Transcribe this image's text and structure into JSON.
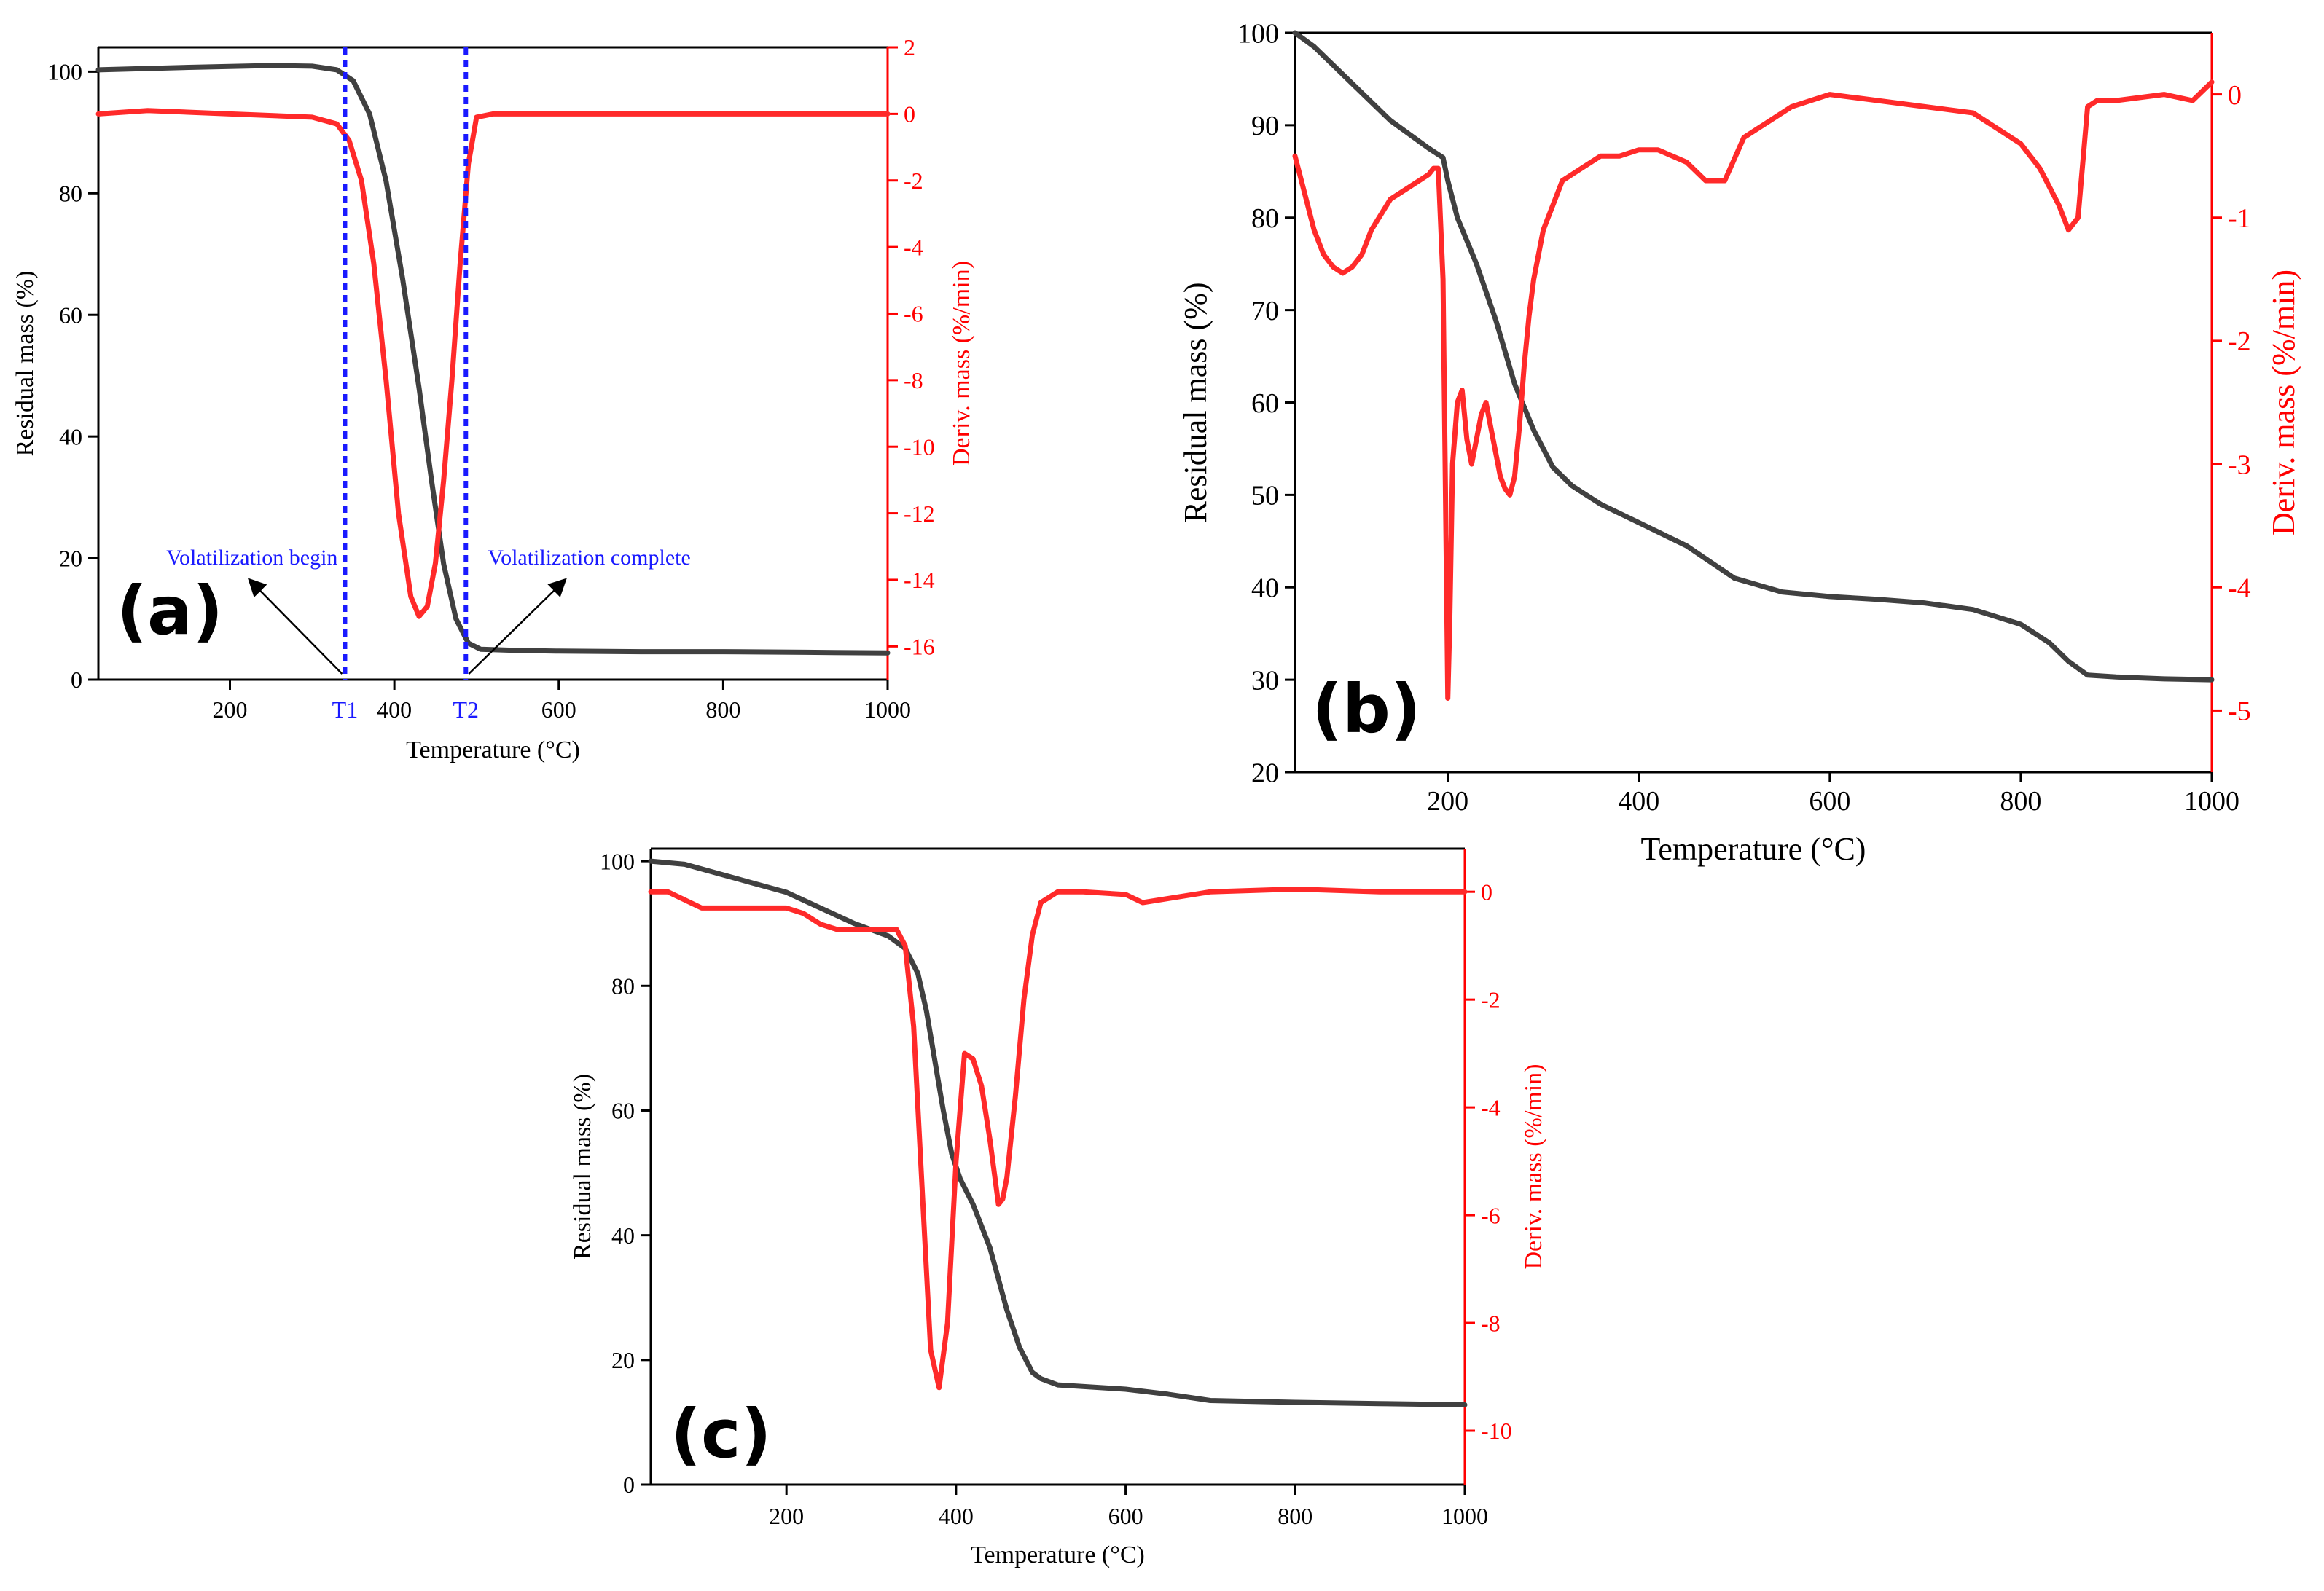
{
  "figure": {
    "colors": {
      "mass": "#404040",
      "deriv": "#ff2a2a",
      "axis_left": "#000000",
      "axis_right": "#ff0000",
      "marker": "#1a1aff"
    }
  },
  "chart_data": [
    {
      "type": "line",
      "panel_label": "(a)",
      "xlabel": "Temperature (°C)",
      "ylabel": "Residual mass (%)",
      "y2label": "Deriv. mass (%/min)",
      "xlim": [
        40,
        1000
      ],
      "ylim": [
        0,
        104
      ],
      "y2lim": [
        -17,
        2
      ],
      "xticks": [
        200,
        400,
        600,
        800,
        1000
      ],
      "yticks": [
        0,
        20,
        40,
        60,
        80,
        100
      ],
      "y2ticks": [
        -16,
        -14,
        -12,
        -10,
        -8,
        -6,
        -4,
        -2,
        0,
        2
      ],
      "series": [
        {
          "name": "Residual mass",
          "axis": "left",
          "x": [
            40,
            150,
            250,
            300,
            330,
            350,
            370,
            390,
            410,
            430,
            445,
            460,
            475,
            490,
            505,
            550,
            600,
            700,
            800,
            900,
            1000
          ],
          "values": [
            100.3,
            100.7,
            101.0,
            100.9,
            100.3,
            98.5,
            93.0,
            82.0,
            66.0,
            48.0,
            33.0,
            19.0,
            10.0,
            6.0,
            5.0,
            4.8,
            4.7,
            4.6,
            4.6,
            4.5,
            4.4
          ]
        },
        {
          "name": "Deriv. mass",
          "axis": "right",
          "x": [
            40,
            100,
            200,
            300,
            330,
            345,
            360,
            375,
            390,
            405,
            420,
            430,
            440,
            450,
            460,
            470,
            480,
            490,
            500,
            520,
            600,
            700,
            800,
            900,
            1000
          ],
          "values": [
            0.0,
            0.1,
            0.0,
            -0.1,
            -0.3,
            -0.8,
            -2.0,
            -4.5,
            -8.0,
            -12.0,
            -14.5,
            -15.1,
            -14.8,
            -13.5,
            -11.0,
            -8.0,
            -4.5,
            -1.5,
            -0.1,
            0.0,
            0.0,
            0.0,
            0.0,
            0.0,
            0.0
          ]
        }
      ],
      "markers": [
        {
          "label": "T1",
          "x": 340
        },
        {
          "label": "T2",
          "x": 487
        }
      ],
      "annotations": [
        {
          "text": "Volatilization begin",
          "points_to": "T1"
        },
        {
          "text": "Volatilization complete",
          "points_to": "T2"
        }
      ]
    },
    {
      "type": "line",
      "panel_label": "(b)",
      "xlabel": "Temperature (°C)",
      "ylabel": "Residual mass (%)",
      "y2label": "Deriv. mass (%/min)",
      "xlim": [
        40,
        1000
      ],
      "ylim": [
        20,
        100
      ],
      "y2lim": [
        -5.5,
        0.5
      ],
      "xticks": [
        200,
        400,
        600,
        800,
        1000
      ],
      "yticks": [
        20,
        30,
        40,
        50,
        60,
        70,
        80,
        90,
        100
      ],
      "y2ticks": [
        -5,
        -4,
        -3,
        -2,
        -1,
        0
      ],
      "series": [
        {
          "name": "Residual mass",
          "axis": "left",
          "x": [
            40,
            60,
            80,
            100,
            120,
            140,
            160,
            180,
            195,
            200,
            210,
            230,
            250,
            270,
            290,
            310,
            330,
            360,
            400,
            450,
            500,
            550,
            600,
            650,
            700,
            750,
            800,
            830,
            850,
            870,
            900,
            950,
            1000
          ],
          "values": [
            100,
            98.5,
            96.5,
            94.5,
            92.5,
            90.5,
            89,
            87.5,
            86.5,
            84,
            80,
            75,
            69,
            62,
            57,
            53,
            51,
            49,
            47,
            44.5,
            41,
            39.5,
            39,
            38.7,
            38.3,
            37.6,
            36,
            34,
            32,
            30.5,
            30.3,
            30.1,
            30
          ]
        },
        {
          "name": "Deriv. mass",
          "axis": "right",
          "x": [
            40,
            50,
            60,
            70,
            80,
            90,
            100,
            110,
            120,
            140,
            160,
            180,
            185,
            190,
            195,
            198,
            200,
            202,
            205,
            210,
            215,
            220,
            225,
            230,
            235,
            240,
            245,
            250,
            255,
            260,
            265,
            270,
            275,
            280,
            285,
            290,
            300,
            320,
            340,
            360,
            380,
            400,
            420,
            450,
            470,
            490,
            510,
            530,
            560,
            600,
            650,
            700,
            750,
            800,
            820,
            840,
            850,
            860,
            870,
            880,
            900,
            950,
            980,
            1000
          ],
          "values": [
            -0.5,
            -0.8,
            -1.1,
            -1.3,
            -1.4,
            -1.45,
            -1.4,
            -1.3,
            -1.1,
            -0.85,
            -0.75,
            -0.65,
            -0.6,
            -0.6,
            -1.5,
            -3.5,
            -4.9,
            -4.3,
            -3.0,
            -2.5,
            -2.4,
            -2.8,
            -3.0,
            -2.8,
            -2.6,
            -2.5,
            -2.7,
            -2.9,
            -3.1,
            -3.2,
            -3.25,
            -3.1,
            -2.7,
            -2.2,
            -1.8,
            -1.5,
            -1.1,
            -0.7,
            -0.6,
            -0.5,
            -0.5,
            -0.45,
            -0.45,
            -0.55,
            -0.7,
            -0.7,
            -0.35,
            -0.25,
            -0.1,
            0.0,
            -0.05,
            -0.1,
            -0.15,
            -0.4,
            -0.6,
            -0.9,
            -1.1,
            -1.0,
            -0.1,
            -0.05,
            -0.05,
            0.0,
            -0.05,
            0.1
          ]
        }
      ]
    },
    {
      "type": "line",
      "panel_label": "(c)",
      "xlabel": "Temperature (°C)",
      "ylabel": "Residual mass (%)",
      "y2label": "Deriv. mass (%/min)",
      "xlim": [
        40,
        1000
      ],
      "ylim": [
        0,
        102
      ],
      "y2lim": [
        -11,
        0.8
      ],
      "xticks": [
        200,
        400,
        600,
        800,
        1000
      ],
      "yticks": [
        0,
        20,
        40,
        60,
        80,
        100
      ],
      "y2ticks": [
        -10,
        -8,
        -6,
        -4,
        -2,
        0
      ],
      "series": [
        {
          "name": "Residual mass",
          "axis": "left",
          "x": [
            40,
            80,
            120,
            160,
            200,
            240,
            280,
            320,
            340,
            355,
            365,
            375,
            385,
            395,
            405,
            420,
            440,
            460,
            475,
            490,
            500,
            520,
            600,
            650,
            700,
            800,
            900,
            1000
          ],
          "values": [
            100,
            99.5,
            98,
            96.5,
            95,
            92.5,
            90,
            88,
            86,
            82,
            76,
            68,
            60,
            53,
            49,
            45,
            38,
            28,
            22,
            18,
            17,
            16,
            15.3,
            14.5,
            13.5,
            13.2,
            13,
            12.8
          ]
        },
        {
          "name": "Deriv. mass",
          "axis": "right",
          "x": [
            40,
            60,
            100,
            150,
            200,
            220,
            240,
            260,
            300,
            330,
            340,
            350,
            360,
            370,
            380,
            390,
            400,
            410,
            420,
            430,
            440,
            450,
            455,
            460,
            470,
            480,
            490,
            500,
            520,
            550,
            600,
            620,
            700,
            800,
            900,
            1000
          ],
          "values": [
            0.0,
            0.0,
            -0.3,
            -0.3,
            -0.3,
            -0.4,
            -0.6,
            -0.7,
            -0.7,
            -0.7,
            -1.0,
            -2.5,
            -5.5,
            -8.5,
            -9.2,
            -8.0,
            -5.0,
            -3.0,
            -3.1,
            -3.6,
            -4.6,
            -5.8,
            -5.7,
            -5.3,
            -3.8,
            -2.0,
            -0.8,
            -0.2,
            0.0,
            0.0,
            -0.05,
            -0.2,
            0.0,
            0.05,
            0.0,
            0.0
          ]
        }
      ]
    }
  ]
}
